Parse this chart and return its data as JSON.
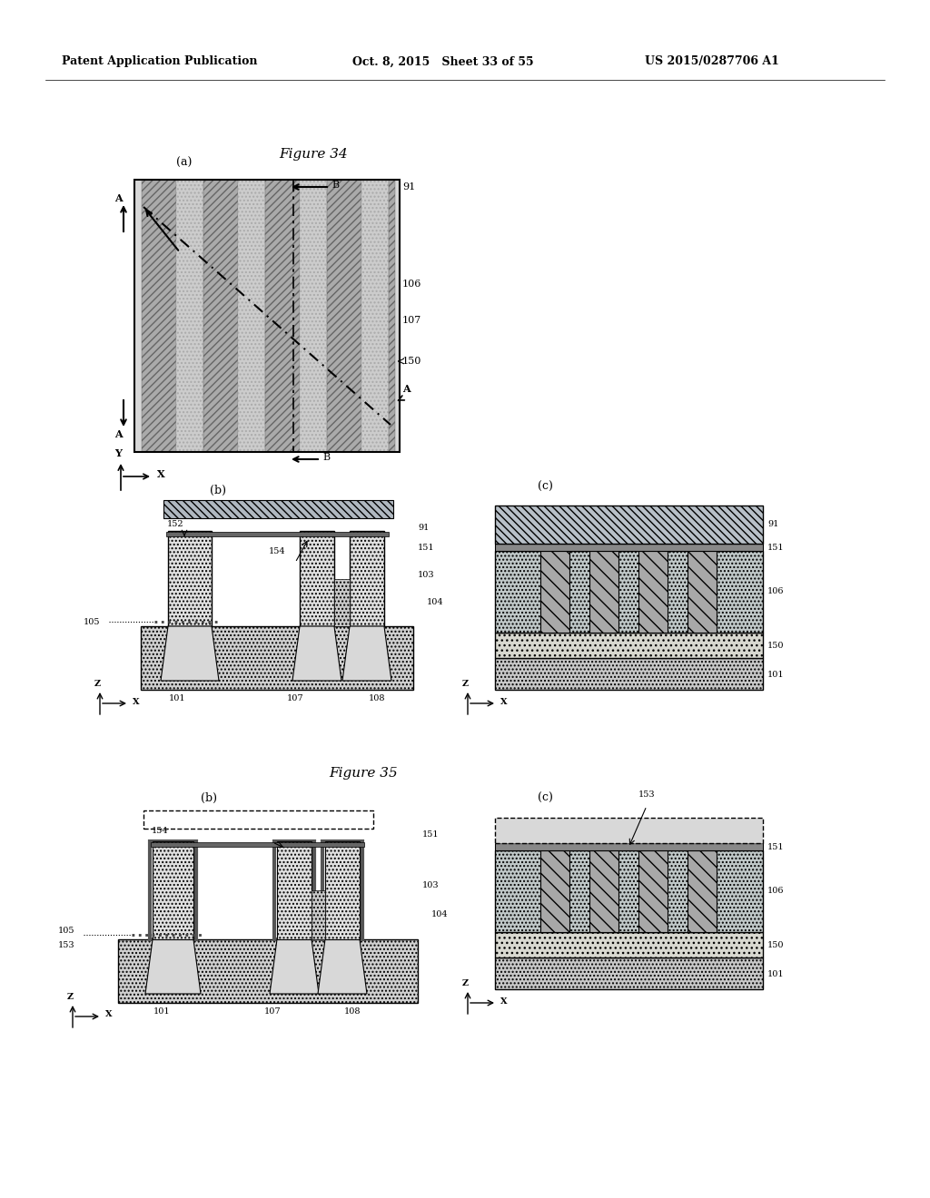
{
  "bg_color": "#ffffff",
  "header_left": "Patent Application Publication",
  "header_mid": "Oct. 8, 2015   Sheet 33 of 55",
  "header_right": "US 2015/0287706 A1",
  "fig34_title": "Figure 34",
  "fig35_title": "Figure 35"
}
